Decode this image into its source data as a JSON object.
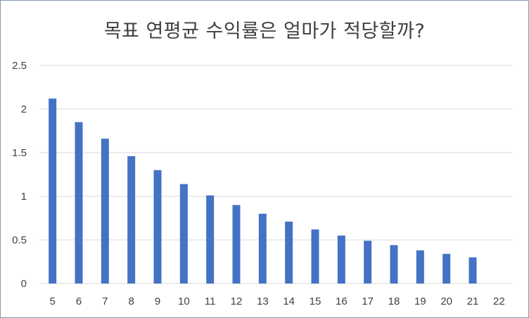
{
  "chart_data": {
    "type": "bar",
    "title": "목표 연평균 수익률은 얼마가 적당할까?",
    "categories": [
      "5",
      "6",
      "7",
      "8",
      "9",
      "10",
      "11",
      "12",
      "13",
      "14",
      "15",
      "16",
      "17",
      "18",
      "19",
      "20",
      "21",
      "22"
    ],
    "series": [
      {
        "values": [
          2.12,
          1.85,
          1.66,
          1.46,
          1.3,
          1.14,
          1.01,
          0.9,
          0.8,
          0.71,
          0.62,
          0.55,
          0.49,
          0.44,
          0.38,
          0.34,
          0.3,
          null
        ]
      }
    ],
    "ylim": [
      0,
      2.5
    ],
    "yticks": [
      "0",
      "0.5",
      "1",
      "1.5",
      "2",
      "2.5"
    ],
    "grid": true,
    "bar_color": "#4472c4",
    "grid_color": "#d9d9d9"
  }
}
